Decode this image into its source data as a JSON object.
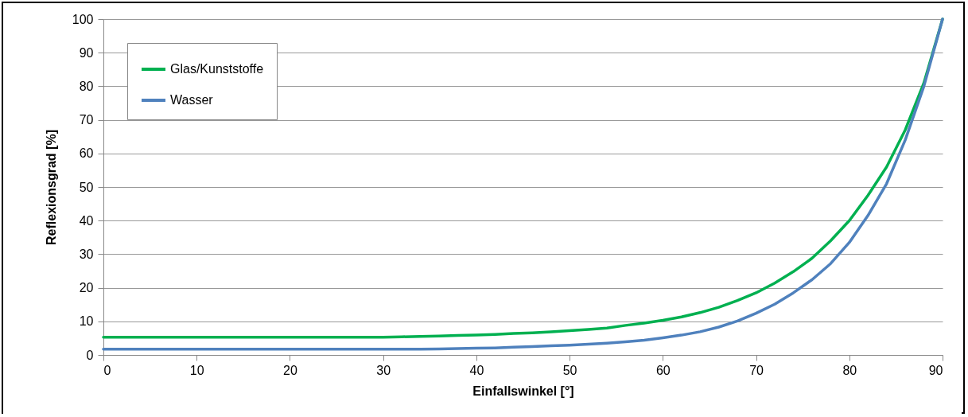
{
  "chart_data": {
    "type": "line",
    "xlabel": "Einfallswinkel [°]",
    "ylabel": "Reflexionsgrad [%]",
    "x": [
      0,
      10,
      20,
      30,
      32,
      34,
      36,
      38,
      40,
      42,
      44,
      46,
      48,
      50,
      52,
      54,
      56,
      58,
      60,
      62,
      64,
      66,
      68,
      70,
      72,
      74,
      76,
      78,
      80,
      82,
      84,
      86,
      88,
      90
    ],
    "series": [
      {
        "name": "Glas/Kunststoffe",
        "color": "#00b050",
        "values": [
          5.3,
          5.3,
          5.3,
          5.3,
          5.4,
          5.5,
          5.6,
          5.8,
          5.9,
          6.1,
          6.4,
          6.6,
          6.9,
          7.2,
          7.6,
          8.0,
          8.8,
          9.5,
          10.3,
          11.3,
          12.6,
          14.2,
          16.2,
          18.5,
          21.4,
          24.8,
          28.8,
          34,
          40,
          47.5,
          56,
          67,
          81,
          100
        ]
      },
      {
        "name": "Wasser",
        "color": "#4f81bd",
        "values": [
          1.7,
          1.7,
          1.7,
          1.7,
          1.7,
          1.7,
          1.8,
          1.9,
          2.0,
          2.1,
          2.3,
          2.5,
          2.7,
          2.9,
          3.2,
          3.5,
          3.9,
          4.4,
          5.1,
          5.9,
          6.9,
          8.3,
          10.1,
          12.4,
          15.1,
          18.5,
          22.4,
          27.2,
          33.5,
          41.5,
          51,
          64,
          80,
          100
        ]
      }
    ],
    "xlim": [
      0,
      90
    ],
    "xticks": [
      0,
      10,
      20,
      30,
      40,
      50,
      60,
      70,
      80,
      90
    ],
    "ylim": [
      0,
      100
    ],
    "yticks": [
      0,
      10,
      20,
      30,
      40,
      50,
      60,
      70,
      80,
      90,
      100
    ],
    "grid": "y",
    "legend": "top left",
    "marker": "none",
    "line_style": "solid"
  }
}
